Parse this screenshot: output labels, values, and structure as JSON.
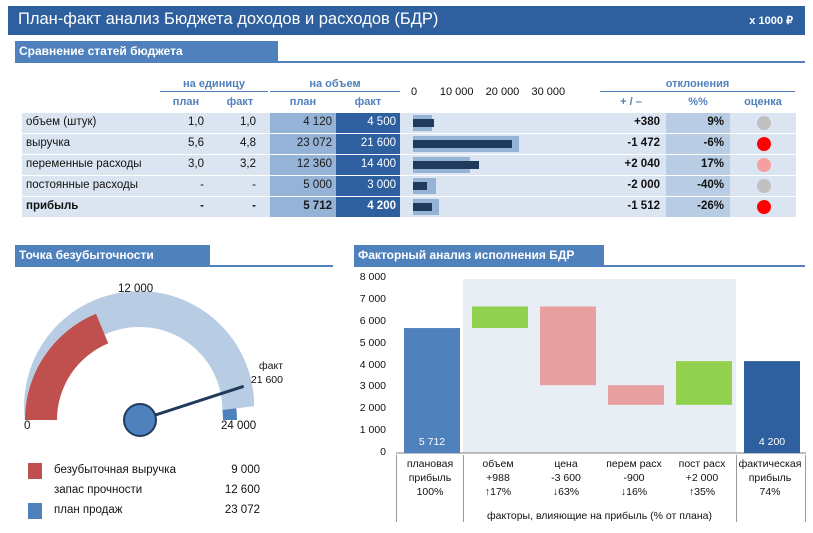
{
  "header": {
    "title": "План-факт анализ Бюджета доходов и расходов (БДР)",
    "unit": "х 1000 ₽"
  },
  "budget": {
    "section_title": "Сравнение статей бюджета",
    "group_unit": "на единицу",
    "group_volume": "на объем",
    "group_dev": "отклонения",
    "col_plan": "план",
    "col_fact": "факт",
    "col_pm": "+ / –",
    "col_pct": "%%",
    "col_score": "оценка",
    "bar_ticks": [
      "0",
      "10 000",
      "20 000",
      "30 000"
    ],
    "bar_max": 36000,
    "rows": [
      {
        "name": "объем (штук)",
        "u_plan": "1,0",
        "u_fact": "1,0",
        "v_plan": "4 120",
        "v_fact": "4 500",
        "plan_val": 4120,
        "fact_val": 4500,
        "dev": "+380",
        "pct": "9%",
        "score_color": "#c0c0c0",
        "bold": false
      },
      {
        "name": "выручка",
        "u_plan": "5,6",
        "u_fact": "4,8",
        "v_plan": "23 072",
        "v_fact": "21 600",
        "plan_val": 23072,
        "fact_val": 21600,
        "dev": "-1 472",
        "pct": "-6%",
        "score_color": "#ff0000",
        "bold": false
      },
      {
        "name": "переменные расходы",
        "u_plan": "3,0",
        "u_fact": "3,2",
        "v_plan": "12 360",
        "v_fact": "14 400",
        "plan_val": 12360,
        "fact_val": 14400,
        "dev": "+2 040",
        "pct": "17%",
        "score_color": "#f4a0a0",
        "bold": false
      },
      {
        "name": "постоянные расходы",
        "u_plan": "-",
        "u_fact": "-",
        "v_plan": "5 000",
        "v_fact": "3 000",
        "plan_val": 5000,
        "fact_val": 3000,
        "dev": "-2 000",
        "pct": "-40%",
        "score_color": "#c0c0c0",
        "bold": false
      },
      {
        "name": "прибыль",
        "u_plan": "-",
        "u_fact": "-",
        "v_plan": "5 712",
        "v_fact": "4 200",
        "plan_val": 5712,
        "fact_val": 4200,
        "dev": "-1 512",
        "pct": "-26%",
        "score_color": "#ff0000",
        "bold": true
      }
    ]
  },
  "breakeven": {
    "section_title": "Точка безубыточности",
    "gauge_top_label": "12 000",
    "gauge_min_label": "0",
    "gauge_max_label": "24 000",
    "fact_label": "факт",
    "fact_value": "21 600",
    "gauge_max": 24000,
    "breakeven_value": 9000,
    "plan_value": 23072,
    "fact_num": 21600,
    "colors": {
      "breakeven": "#c0504d",
      "margin": "#b8cce4",
      "plan": "#4f81bd",
      "needle": "#1f3a5a"
    },
    "legend": [
      {
        "label": "безубыточная выручка",
        "value": "9 000",
        "color": "#c0504d"
      },
      {
        "label": "запас прочности",
        "value": "12 600",
        "color": ""
      },
      {
        "label": "план продаж",
        "value": "23 072",
        "color": "#4f81bd"
      }
    ]
  },
  "factor": {
    "section_title": "Факторный анализ исполнения БДР",
    "footer_caption": "факторы, влияющие на прибыль (% от плана)",
    "chart_data": {
      "type": "waterfall",
      "title": "Факторный анализ исполнения БДР",
      "ylim": [
        0,
        8000
      ],
      "yticks": [
        "0",
        "1 000",
        "2 000",
        "3 000",
        "4 000",
        "5 000",
        "6 000",
        "7 000",
        "8 000"
      ],
      "bars": [
        {
          "cat_line1": "плановая",
          "cat_line2": "прибыль",
          "cat_line3": "100%",
          "base": 0,
          "top": 5712,
          "color": "#4f81bd",
          "value_label": "5 712"
        },
        {
          "cat_line1": "объем",
          "cat_line2": "+988",
          "cat_line3": "↑17%",
          "base": 5712,
          "top": 6700,
          "color": "#92d050",
          "value_label": ""
        },
        {
          "cat_line1": "цена",
          "cat_line2": "-3 600",
          "cat_line3": "↓63%",
          "base": 3100,
          "top": 6700,
          "color": "#e6a0a0",
          "value_label": ""
        },
        {
          "cat_line1": "перем расх",
          "cat_line2": "-900",
          "cat_line3": "↓16%",
          "base": 2200,
          "top": 3100,
          "color": "#e6a0a0",
          "value_label": ""
        },
        {
          "cat_line1": "пост расх",
          "cat_line2": "+2 000",
          "cat_line3": "↑35%",
          "base": 2200,
          "top": 4200,
          "color": "#92d050",
          "value_label": ""
        },
        {
          "cat_line1": "фактическая",
          "cat_line2": "прибыль",
          "cat_line3": "74%",
          "base": 0,
          "top": 4200,
          "color": "#2e5f9e",
          "value_label": "4 200"
        }
      ]
    }
  }
}
